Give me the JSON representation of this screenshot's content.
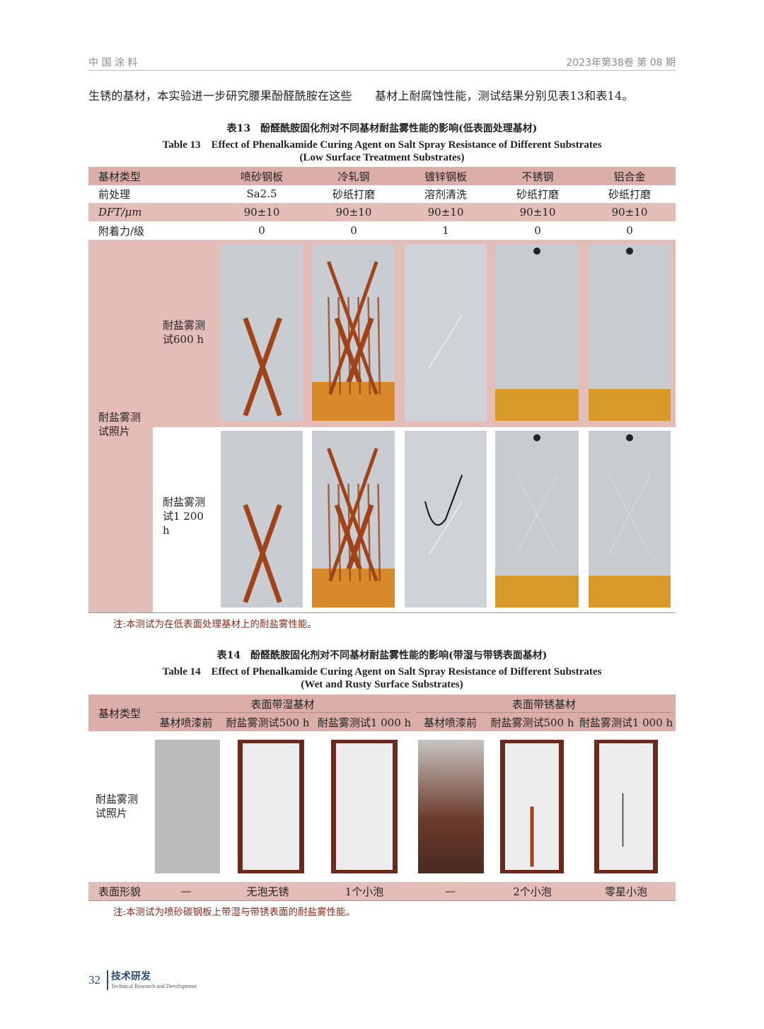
{
  "header": {
    "journal": "中 国 涂 料",
    "issue": "2023年第38卷   第 08 期"
  },
  "body_text": "生锈的基材，本实验进一步研究腰果酚醛酰胺在这些　　基材上耐腐蚀性能，测试结果分别见表13和表14。",
  "table13": {
    "caption_cn": "表13　酚醛酰胺固化剂对不同基材耐盐雾性能的影响(低表面处理基材)",
    "caption_en1": "Table 13　Effect of Phenalkamide Curing Agent on Salt Spray Resistance of Different Substrates",
    "caption_en2": "(Low Surface Treatment Substrates)",
    "rows": [
      [
        "基材类型",
        "喷砂钢板",
        "冷轧钢",
        "镀锌钢板",
        "不锈钢",
        "铝合金"
      ],
      [
        "前处理",
        "Sa2.5",
        "砂纸打磨",
        "溶剂清洗",
        "砂纸打磨",
        "砂纸打磨"
      ],
      [
        "DFT/μm",
        "90±10",
        "90±10",
        "90±10",
        "90±10",
        "90±10"
      ],
      [
        "附着力/级",
        "0",
        "0",
        "1",
        "0",
        "0"
      ]
    ],
    "photo_label": "耐盐雾测试照片",
    "photo_rows": [
      {
        "label": "耐盐雾测试600 h",
        "panels": [
          "x-rust",
          "x-rust-heavy",
          "faint",
          "band",
          "band"
        ]
      },
      {
        "label": "耐盐雾测试1 200 h",
        "panels": [
          "x-rust",
          "x-rust-heavy",
          "marker",
          "band-x",
          "band-x"
        ]
      }
    ],
    "note": "注:本测试为在低表面处理基材上的耐盐雾性能。"
  },
  "table14": {
    "caption_cn": "表14　酚醛酰胺固化剂对不同基材耐盐雾性能的影响(带湿与带锈表面基材)",
    "caption_en1": "Table 14　Effect of Phenalkamide Curing Agent on Salt Spray Resistance of Different Substrates",
    "caption_en2": "(Wet and Rusty Surface Substrates)",
    "row_header": "基材类型",
    "groups": [
      "表面带湿基材",
      "表面带锈基材"
    ],
    "subheaders": [
      "基材喷漆前",
      "耐盐雾测试500 h",
      "耐盐雾测试1 000 h",
      "基材喷漆前",
      "耐盐雾测试500 h",
      "耐盐雾测试1 000 h"
    ],
    "photo_label": "耐盐雾测试照片",
    "panels": [
      "grey-speckle",
      "white",
      "white",
      "rusty",
      "white-scribe",
      "white-marked"
    ],
    "result_label": "表面形貌",
    "results": [
      "—",
      "无泡无锈",
      "1个小泡",
      "—",
      "2个小泡",
      "零星小泡"
    ],
    "note": "注:本测试为喷砂碳钢板上带湿与带锈表面的耐盐雾性能。"
  },
  "footer": {
    "page": "32",
    "section_cn": "技术研发",
    "section_en": "Technical Research and Development"
  },
  "colors": {
    "pink_header": "#dcaeaa",
    "pink_row": "#e4bcb8",
    "rust": "#a0431a",
    "band": "#e0a030",
    "note": "#8b2a1a"
  }
}
